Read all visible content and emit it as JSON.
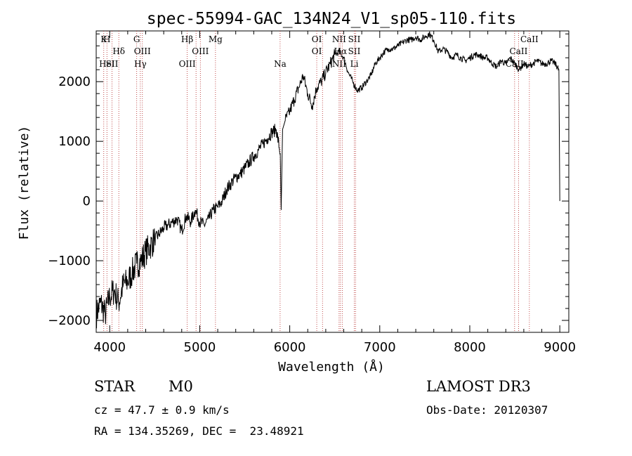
{
  "chart_data": {
    "type": "line",
    "title": "spec-55994-GAC_134N24_V1_sp05-110.fits",
    "xlabel": "Wavelength (Å)",
    "ylabel": "Flux (relative)",
    "xlim": [
      3850,
      9100
    ],
    "ylim": [
      -2200,
      2850
    ],
    "xticks": [
      4000,
      5000,
      6000,
      7000,
      8000,
      9000
    ],
    "yticks": [
      -2000,
      -1000,
      0,
      1000,
      2000
    ],
    "series": [
      {
        "name": "spectrum",
        "x": [
          3850,
          3900,
          3950,
          4000,
          4050,
          4100,
          4150,
          4200,
          4250,
          4300,
          4350,
          4400,
          4450,
          4500,
          4550,
          4600,
          4650,
          4700,
          4750,
          4800,
          4850,
          4900,
          4950,
          5000,
          5050,
          5100,
          5150,
          5200,
          5250,
          5300,
          5350,
          5400,
          5450,
          5500,
          5550,
          5600,
          5650,
          5700,
          5750,
          5800,
          5850,
          5895,
          5905,
          5920,
          5950,
          6000,
          6050,
          6100,
          6150,
          6200,
          6250,
          6300,
          6350,
          6400,
          6450,
          6500,
          6550,
          6600,
          6650,
          6700,
          6750,
          6800,
          6850,
          6900,
          6950,
          7000,
          7050,
          7100,
          7150,
          7200,
          7250,
          7300,
          7350,
          7400,
          7450,
          7500,
          7550,
          7600,
          7650,
          7700,
          7750,
          7800,
          7850,
          7900,
          7950,
          8000,
          8050,
          8100,
          8150,
          8200,
          8250,
          8300,
          8350,
          8400,
          8450,
          8500,
          8550,
          8600,
          8650,
          8700,
          8750,
          8800,
          8850,
          8900,
          8950,
          8990,
          9000
        ],
        "y": [
          -1900,
          -1700,
          -1900,
          -1600,
          -1500,
          -1700,
          -1400,
          -1350,
          -1200,
          -1050,
          -1000,
          -850,
          -750,
          -650,
          -550,
          -450,
          -400,
          -350,
          -300,
          -500,
          -250,
          -350,
          -150,
          -350,
          -400,
          -300,
          -150,
          -100,
          0,
          200,
          300,
          400,
          450,
          550,
          650,
          750,
          850,
          950,
          1050,
          1150,
          1200,
          800,
          -150,
          1200,
          1350,
          1500,
          1700,
          1900,
          2100,
          1800,
          1600,
          1900,
          2000,
          2150,
          2300,
          2450,
          2500,
          2400,
          2150,
          2000,
          1850,
          1900,
          2000,
          2100,
          2300,
          2400,
          2500,
          2550,
          2550,
          2600,
          2650,
          2700,
          2700,
          2750,
          2700,
          2750,
          2800,
          2700,
          2500,
          2550,
          2500,
          2400,
          2450,
          2400,
          2350,
          2400,
          2450,
          2450,
          2400,
          2400,
          2300,
          2250,
          2350,
          2300,
          2400,
          2300,
          2200,
          2300,
          2250,
          2300,
          2350,
          2300,
          2300,
          2350,
          2300,
          2200,
          0
        ]
      }
    ],
    "line_markers": [
      {
        "wave": 3934,
        "rows": [
          "K"
        ]
      },
      {
        "wave": 3969,
        "rows": [
          "H",
          "",
          "HeI"
        ]
      },
      {
        "wave": 4026,
        "rows": [
          "",
          "",
          "SII"
        ]
      },
      {
        "wave": 4101,
        "rows": [
          "",
          "Hδ"
        ]
      },
      {
        "wave": 4300,
        "rows": [
          "G"
        ]
      },
      {
        "wave": 4340,
        "rows": [
          "",
          "",
          "Hγ"
        ]
      },
      {
        "wave": 4363,
        "rows": [
          "",
          "OIII"
        ]
      },
      {
        "wave": 4861,
        "rows": [
          "Hβ",
          "",
          "OIII"
        ]
      },
      {
        "wave": 4959,
        "rows": []
      },
      {
        "wave": 5007,
        "rows": [
          "",
          "OIII"
        ]
      },
      {
        "wave": 5175,
        "rows": [
          "Mg"
        ]
      },
      {
        "wave": 5893,
        "rows": [
          "",
          "",
          "Na"
        ]
      },
      {
        "wave": 6300,
        "rows": [
          "OI",
          "OI"
        ]
      },
      {
        "wave": 6364,
        "rows": []
      },
      {
        "wave": 6548,
        "rows": [
          "NII",
          "",
          "NII"
        ]
      },
      {
        "wave": 6563,
        "rows": [
          "",
          "Hα"
        ]
      },
      {
        "wave": 6583,
        "rows": []
      },
      {
        "wave": 6717,
        "rows": [
          "SII",
          "SII",
          "Li"
        ]
      },
      {
        "wave": 6731,
        "rows": []
      },
      {
        "wave": 8498,
        "rows": [
          "",
          "",
          "CaII"
        ]
      },
      {
        "wave": 8542,
        "rows": [
          "",
          "CaII"
        ]
      },
      {
        "wave": 8662,
        "rows": [
          "CaII"
        ]
      }
    ]
  },
  "info": {
    "object_class": "STAR",
    "subclass": "M0",
    "survey": "LAMOST DR3",
    "redshift": "cz = 47.7 ± 0.9 km/s",
    "obs_date": "Obs-Date: 20120307",
    "coords": "RA = 134.35269, DEC =  23.48921"
  },
  "colors": {
    "spectrum": "#000000",
    "marker_line": "#b22222",
    "axes": "#000000",
    "background": "#ffffff"
  }
}
